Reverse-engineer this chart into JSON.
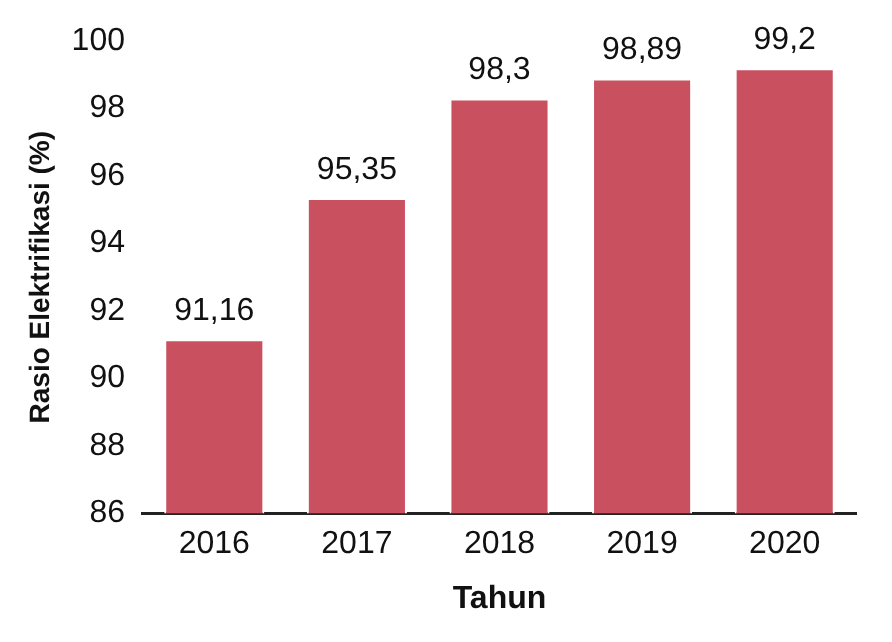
{
  "chart_data": {
    "type": "bar",
    "xlabel": "Tahun",
    "ylabel": "Rasio Elektrifikasi (%)",
    "categories": [
      "2016",
      "2017",
      "2018",
      "2019",
      "2020"
    ],
    "values": [
      91.16,
      95.35,
      98.3,
      98.89,
      99.2
    ],
    "value_labels": [
      "91,16",
      "95,35",
      "98,3",
      "98,89",
      "99,2"
    ],
    "color": "#c8505f",
    "ylim": [
      86,
      100
    ],
    "yticks": [
      86,
      88,
      90,
      92,
      94,
      96,
      98,
      100
    ],
    "grid": false,
    "legend": false
  }
}
